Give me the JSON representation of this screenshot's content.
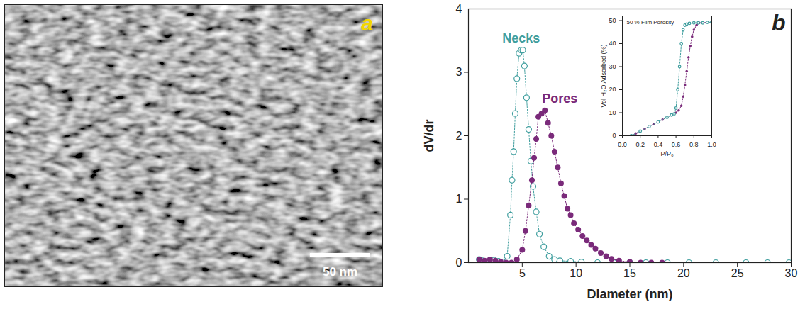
{
  "chart_data": [
    {
      "type": "image",
      "panel": "a",
      "scale_bar": {
        "value": 50,
        "label": "50 nm"
      }
    },
    {
      "type": "scatter",
      "panel": "b",
      "x_label": "Diameter (nm)",
      "y_label": "dV/dr",
      "xlim": [
        0,
        30
      ],
      "xticks": [
        5,
        10,
        15,
        20,
        25,
        30
      ],
      "ylim": [
        0,
        4
      ],
      "yticks": [
        0,
        1,
        2,
        3,
        4
      ],
      "line_style": "dotted",
      "series": [
        {
          "name": "Necks",
          "color": "#3f9e9e",
          "marker": "circle_open",
          "x": [
            1.0,
            1.3,
            1.6,
            2.0,
            2.4,
            2.8,
            3.2,
            3.6,
            3.9,
            4.05,
            4.2,
            4.35,
            4.5,
            4.7,
            4.9,
            5.05,
            5.2,
            5.4,
            5.6,
            5.8,
            6.0,
            6.3,
            6.6,
            7.0,
            7.5,
            8.0,
            8.5,
            9.5,
            10.5,
            12.0,
            13.5,
            15.0,
            16.5,
            18.5,
            20.5,
            23.0,
            25.8,
            27.8,
            29.8
          ],
          "values": [
            0.05,
            0.03,
            0.0,
            0.02,
            0.04,
            0.02,
            0.01,
            0.1,
            0.75,
            1.3,
            1.75,
            2.35,
            2.9,
            3.3,
            3.35,
            3.35,
            3.1,
            2.6,
            2.1,
            1.6,
            1.2,
            0.8,
            0.45,
            0.25,
            0.1,
            0.05,
            0.03,
            0.02,
            0.01,
            0,
            0,
            0,
            0,
            0,
            0,
            0,
            0,
            0,
            0
          ]
        },
        {
          "name": "Pores",
          "color": "#7a2a7a",
          "marker": "circle",
          "x": [
            1.0,
            1.5,
            2.0,
            2.5,
            3.0,
            3.5,
            4.0,
            4.5,
            5.0,
            5.3,
            5.6,
            5.9,
            6.1,
            6.3,
            6.5,
            6.8,
            7.1,
            7.4,
            7.7,
            8.0,
            8.3,
            8.6,
            8.9,
            9.2,
            9.5,
            9.8,
            10.2,
            10.6,
            11.0,
            11.4,
            11.8,
            12.3,
            12.8,
            13.3,
            14.0,
            15.0,
            16.0,
            17.0,
            18.0
          ],
          "values": [
            0.05,
            0.03,
            0.05,
            0.03,
            0.01,
            0.0,
            0.0,
            0.05,
            0.2,
            0.5,
            0.9,
            1.3,
            1.65,
            1.95,
            2.3,
            2.35,
            2.4,
            2.2,
            2.0,
            1.75,
            1.5,
            1.25,
            1.05,
            0.85,
            0.75,
            0.62,
            0.52,
            0.42,
            0.35,
            0.28,
            0.22,
            0.15,
            0.1,
            0.06,
            0.03,
            0.01,
            0,
            0,
            0
          ]
        }
      ]
    },
    {
      "type": "scatter",
      "title": "50 % Film Porosity",
      "x_label": "P/P₀",
      "y_label": "Vol H₂O Adsorbed (%)",
      "xlim": [
        0,
        1
      ],
      "xticks": [
        {
          "value": 0,
          "label": "0.0"
        },
        {
          "value": 0.2,
          "label": "0.2"
        },
        {
          "value": 0.4,
          "label": "0.4"
        },
        {
          "value": 0.6,
          "label": "0.6"
        },
        {
          "value": 0.8,
          "label": "0.8"
        },
        {
          "value": 1,
          "label": "1.0"
        }
      ],
      "ylim": [
        0,
        52
      ],
      "yticks": [
        0,
        10,
        20,
        30,
        40,
        50
      ],
      "line_style": "dotted",
      "series": [
        {
          "color": "#7a2a7a",
          "marker": "circle",
          "x": [
            0.1,
            0.15,
            0.2,
            0.25,
            0.3,
            0.35,
            0.4,
            0.45,
            0.5,
            0.55,
            0.6,
            0.63,
            0.66,
            0.68,
            0.7,
            0.72,
            0.74,
            0.76,
            0.78,
            0.8,
            0.83,
            0.86,
            0.9,
            0.95,
            1.0
          ],
          "values": [
            0,
            1,
            2,
            3,
            4,
            5,
            6,
            7,
            8,
            9,
            10,
            11,
            13,
            17,
            22,
            28,
            34,
            39,
            43,
            46,
            48,
            49,
            49,
            49.3,
            49.3
          ]
        },
        {
          "color": "#3f9e9e",
          "marker": "circle_open",
          "x": [
            0.1,
            0.2,
            0.3,
            0.4,
            0.5,
            0.55,
            0.58,
            0.6,
            0.62,
            0.64,
            0.66,
            0.68,
            0.7,
            0.72,
            0.75,
            0.8,
            0.85,
            0.9,
            0.95,
            1.0
          ],
          "values": [
            0,
            2,
            4,
            6,
            8,
            9,
            9.5,
            12,
            20,
            30,
            40,
            46,
            48,
            48.5,
            48.8,
            49,
            49,
            49,
            49.2,
            49.3
          ]
        }
      ]
    }
  ]
}
